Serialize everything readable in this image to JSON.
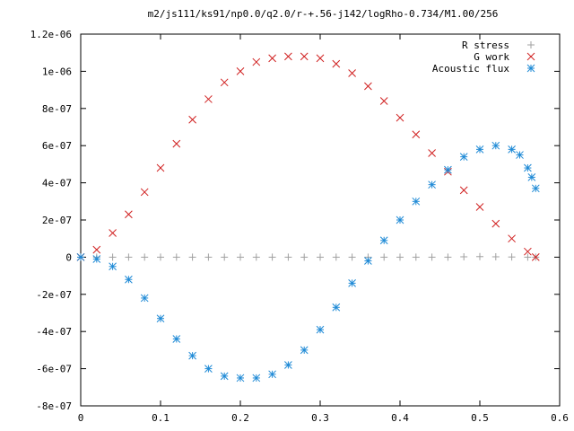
{
  "chart_data": {
    "type": "scatter",
    "title": "m2/js111/ks91/np0.0/q2.0/r-+.56-j142/logRho-0.734/M1.00/256",
    "xlabel": "",
    "ylabel": "",
    "xlim": [
      0,
      0.6
    ],
    "ylim": [
      -8e-07,
      1.2e-06
    ],
    "x_ticks": [
      0,
      0.1,
      0.2,
      0.3,
      0.4,
      0.5,
      0.6
    ],
    "x_tick_labels": [
      "0",
      "0.1",
      "0.2",
      "0.3",
      "0.4",
      "0.5",
      "0.6"
    ],
    "y_ticks": [
      -8e-07,
      -6e-07,
      -4e-07,
      -2e-07,
      0,
      2e-07,
      4e-07,
      6e-07,
      8e-07,
      1e-06,
      1.2e-06
    ],
    "y_tick_labels": [
      "-8e-07",
      "-6e-07",
      "-4e-07",
      "-2e-07",
      "0",
      "2e-07",
      "4e-07",
      "6e-07",
      "8e-07",
      "1e-06",
      "1.2e-06"
    ],
    "grid": false,
    "legend_position": "top-right",
    "series": [
      {
        "name": "R stress",
        "marker": "plus",
        "color": "#a0a0a0",
        "x": [
          0.0,
          0.02,
          0.04,
          0.06,
          0.08,
          0.1,
          0.12,
          0.14,
          0.16,
          0.18,
          0.2,
          0.22,
          0.24,
          0.26,
          0.28,
          0.3,
          0.32,
          0.34,
          0.36,
          0.38,
          0.4,
          0.42,
          0.44,
          0.46,
          0.48,
          0.5,
          0.52,
          0.54,
          0.56,
          0.57
        ],
        "y": [
          0,
          0,
          0,
          0,
          0,
          0,
          0,
          0,
          0,
          0,
          0,
          0,
          0,
          0,
          0,
          0,
          0,
          0,
          0,
          0,
          0,
          0,
          0,
          0,
          2e-09,
          3e-09,
          2e-09,
          1e-09,
          0,
          0
        ]
      },
      {
        "name": "G work",
        "marker": "cross",
        "color": "#d02020",
        "x": [
          0.0,
          0.02,
          0.04,
          0.06,
          0.08,
          0.1,
          0.12,
          0.14,
          0.16,
          0.18,
          0.2,
          0.22,
          0.24,
          0.26,
          0.28,
          0.3,
          0.32,
          0.34,
          0.36,
          0.38,
          0.4,
          0.42,
          0.44,
          0.46,
          0.48,
          0.5,
          0.52,
          0.54,
          0.56,
          0.57
        ],
        "y": [
          0,
          4e-08,
          1.3e-07,
          2.3e-07,
          3.5e-07,
          4.8e-07,
          6.1e-07,
          7.4e-07,
          8.5e-07,
          9.4e-07,
          1e-06,
          1.05e-06,
          1.07e-06,
          1.08e-06,
          1.08e-06,
          1.07e-06,
          1.04e-06,
          9.9e-07,
          9.2e-07,
          8.4e-07,
          7.5e-07,
          6.6e-07,
          5.6e-07,
          4.6e-07,
          3.6e-07,
          2.7e-07,
          1.8e-07,
          1e-07,
          3e-08,
          0
        ]
      },
      {
        "name": "Acoustic flux",
        "marker": "star",
        "color": "#1f8ad6",
        "x": [
          0.0,
          0.02,
          0.04,
          0.06,
          0.08,
          0.1,
          0.12,
          0.14,
          0.16,
          0.18,
          0.2,
          0.22,
          0.24,
          0.26,
          0.28,
          0.3,
          0.32,
          0.34,
          0.36,
          0.38,
          0.4,
          0.42,
          0.44,
          0.46,
          0.48,
          0.5,
          0.52,
          0.54,
          0.55,
          0.56,
          0.565,
          0.57
        ],
        "y": [
          0,
          -1e-08,
          -5e-08,
          -1.2e-07,
          -2.2e-07,
          -3.3e-07,
          -4.4e-07,
          -5.3e-07,
          -6e-07,
          -6.4e-07,
          -6.5e-07,
          -6.5e-07,
          -6.3e-07,
          -5.8e-07,
          -5e-07,
          -3.9e-07,
          -2.7e-07,
          -1.4e-07,
          -2e-08,
          9e-08,
          2e-07,
          3e-07,
          3.9e-07,
          4.7e-07,
          5.4e-07,
          5.8e-07,
          6e-07,
          5.8e-07,
          5.5e-07,
          4.8e-07,
          4.3e-07,
          3.7e-07
        ]
      }
    ]
  }
}
